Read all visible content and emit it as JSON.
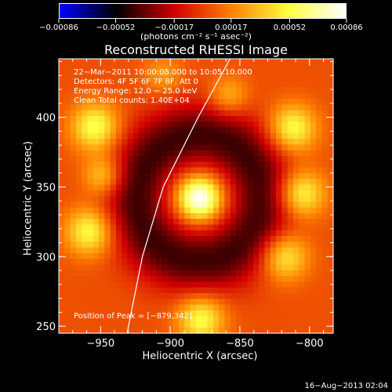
{
  "chart_data": {
    "type": "heatmap",
    "title": "Reconstructed RHESSI Image",
    "xlabel": "Heliocentric X (arcsec)",
    "ylabel": "Heliocentric Y (arcsec)",
    "xlim": [
      -980,
      -783
    ],
    "ylim": [
      245,
      442
    ],
    "x_ticks": [
      {
        "value": -950,
        "label": "−950"
      },
      {
        "value": -900,
        "label": "−900"
      },
      {
        "value": -850,
        "label": "−850"
      },
      {
        "value": -800,
        "label": "−800"
      }
    ],
    "y_ticks": [
      {
        "value": 250,
        "label": "250"
      },
      {
        "value": 300,
        "label": "300"
      },
      {
        "value": 350,
        "label": "350"
      },
      {
        "value": 400,
        "label": "400"
      }
    ],
    "colorbar": {
      "range": [
        -0.00086,
        0.00086
      ],
      "ticks": [
        {
          "value": -0.00086,
          "label": "−0.00086"
        },
        {
          "value": -0.00052,
          "label": "−0.00052"
        },
        {
          "value": -0.00017,
          "label": "−0.00017"
        },
        {
          "value": 0.00017,
          "label": "0.00017"
        },
        {
          "value": 0.00052,
          "label": "0.00052"
        },
        {
          "value": 0.00086,
          "label": "0.00086"
        }
      ],
      "units_label": "(photons cm⁻² s⁻¹ asec⁻²)"
    },
    "annotations": [
      "22−Mar−2011 10:00:08.000 to 10:05:10.000",
      "Detectors: 4F 5F 6F 7F 8F, Att 0",
      "Energy Range: 12.0 − 25.0 keV",
      "Clean     Total counts: 1.40E+04"
    ],
    "peak_label": "Position of Peak = [−879,342]",
    "peak": {
      "x": -879,
      "y": 342
    },
    "limb_curve": [
      [
        -931,
        245
      ],
      [
        -920,
        300
      ],
      [
        -905,
        350
      ],
      [
        -880,
        400
      ],
      [
        -857,
        442
      ]
    ],
    "sources": [
      {
        "x": -879,
        "y": 342,
        "sigma": 11,
        "amp": 1.0
      },
      {
        "x": -954,
        "y": 393,
        "sigma": 12,
        "amp": 0.62
      },
      {
        "x": -948,
        "y": 358,
        "sigma": 10,
        "amp": 0.45
      },
      {
        "x": -958,
        "y": 318,
        "sigma": 12,
        "amp": 0.6
      },
      {
        "x": -812,
        "y": 392,
        "sigma": 12,
        "amp": 0.6
      },
      {
        "x": -806,
        "y": 345,
        "sigma": 12,
        "amp": 0.62
      },
      {
        "x": -818,
        "y": 300,
        "sigma": 12,
        "amp": 0.55
      },
      {
        "x": -878,
        "y": 255,
        "sigma": 12,
        "amp": 0.6
      },
      {
        "x": -858,
        "y": 415,
        "sigma": 10,
        "amp": 0.35
      },
      {
        "x": -905,
        "y": 430,
        "sigma": 10,
        "amp": 0.25
      }
    ],
    "ring": {
      "x": -879,
      "y": 342,
      "radius": 45,
      "width": 17,
      "amp": -0.55
    },
    "colormap": [
      "#0000ff",
      "#000000",
      "#d00000",
      "#ff8000",
      "#ffff40",
      "#ffffff"
    ]
  },
  "footer": {
    "date": "16−Aug−2013 02:04"
  }
}
